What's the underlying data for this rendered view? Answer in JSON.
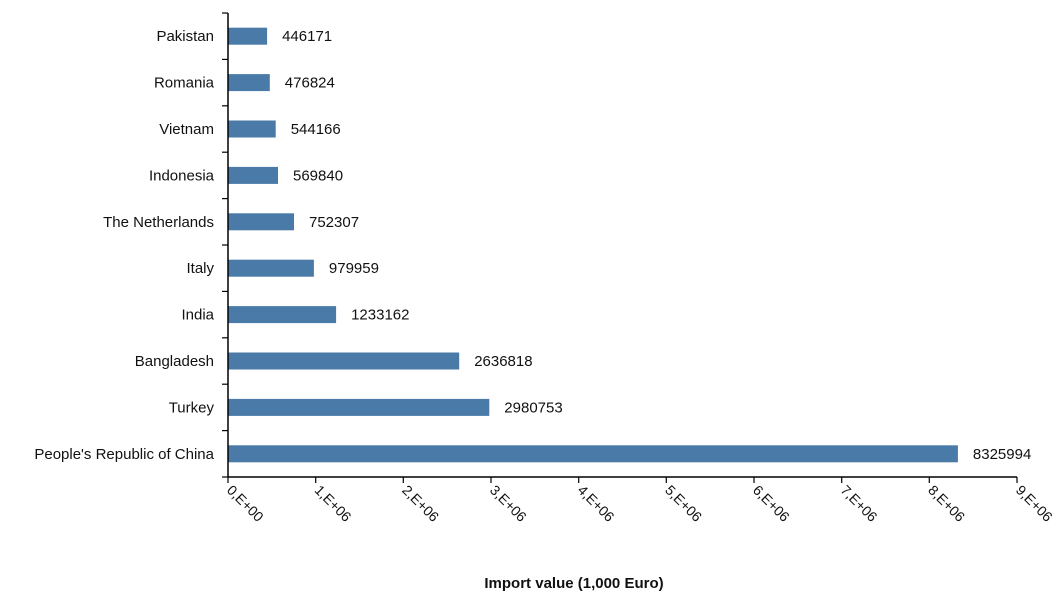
{
  "chart_data": {
    "type": "bar",
    "orientation": "horizontal",
    "categories": [
      "Pakistan",
      "Romania",
      "Vietnam",
      "Indonesia",
      "The Netherlands",
      "Italy",
      "India",
      "Bangladesh",
      "Turkey",
      "People's Republic of China"
    ],
    "values": [
      446171,
      476824,
      544166,
      569840,
      752307,
      979959,
      1233162,
      2636818,
      2980753,
      8325994
    ],
    "value_labels": [
      "446171",
      "476824",
      "544166",
      "569840",
      "752307",
      "979959",
      "1233162",
      "2636818",
      "2980753",
      "8325994"
    ],
    "xlabel": "Import value (1,000 Euro)",
    "ylabel": "",
    "xlim": [
      0,
      9000000
    ],
    "x_ticks": [
      0,
      1000000,
      2000000,
      3000000,
      4000000,
      5000000,
      6000000,
      7000000,
      8000000,
      9000000
    ],
    "x_tick_labels": [
      "0,E+00",
      "1,E+06",
      "2,E+06",
      "3,E+06",
      "4,E+06",
      "5,E+06",
      "6,E+06",
      "7,E+06",
      "8,E+06",
      "9,E+06"
    ],
    "bar_color": "#4a7aa8",
    "grid": false,
    "legend": "none"
  }
}
